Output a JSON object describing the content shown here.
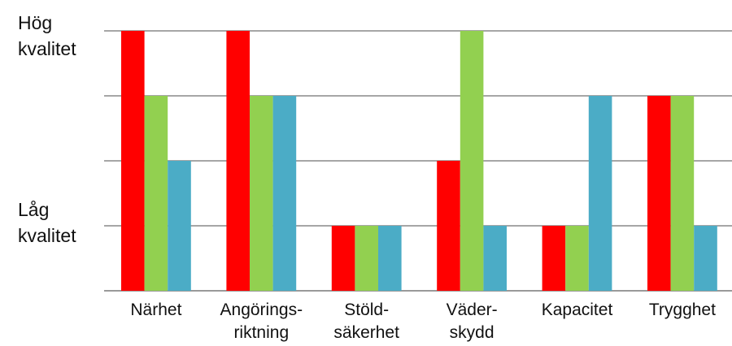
{
  "chart_data": {
    "type": "bar",
    "title": "",
    "xlabel": "",
    "ylabel": "",
    "ylim": [
      0,
      4
    ],
    "grid": true,
    "legend": "none",
    "y_annotations": [
      {
        "value": 4,
        "label": "Hög\nkvalitet"
      },
      {
        "value": 1,
        "label": "Låg\nkvalitet"
      }
    ],
    "categories": [
      "Närhet",
      "Angörings-\nriktning",
      "Stöld-\nsäkerhet",
      "Väder-\nskydd",
      "Kapacitet",
      "Trygghet"
    ],
    "series": [
      {
        "color": "#ff0000",
        "values": [
          4,
          4,
          1,
          2,
          1,
          3
        ]
      },
      {
        "color": "#92d050",
        "values": [
          3,
          3,
          1,
          4,
          1,
          3
        ]
      },
      {
        "color": "#4bacc6",
        "values": [
          2,
          3,
          1,
          1,
          3,
          1
        ]
      }
    ]
  }
}
